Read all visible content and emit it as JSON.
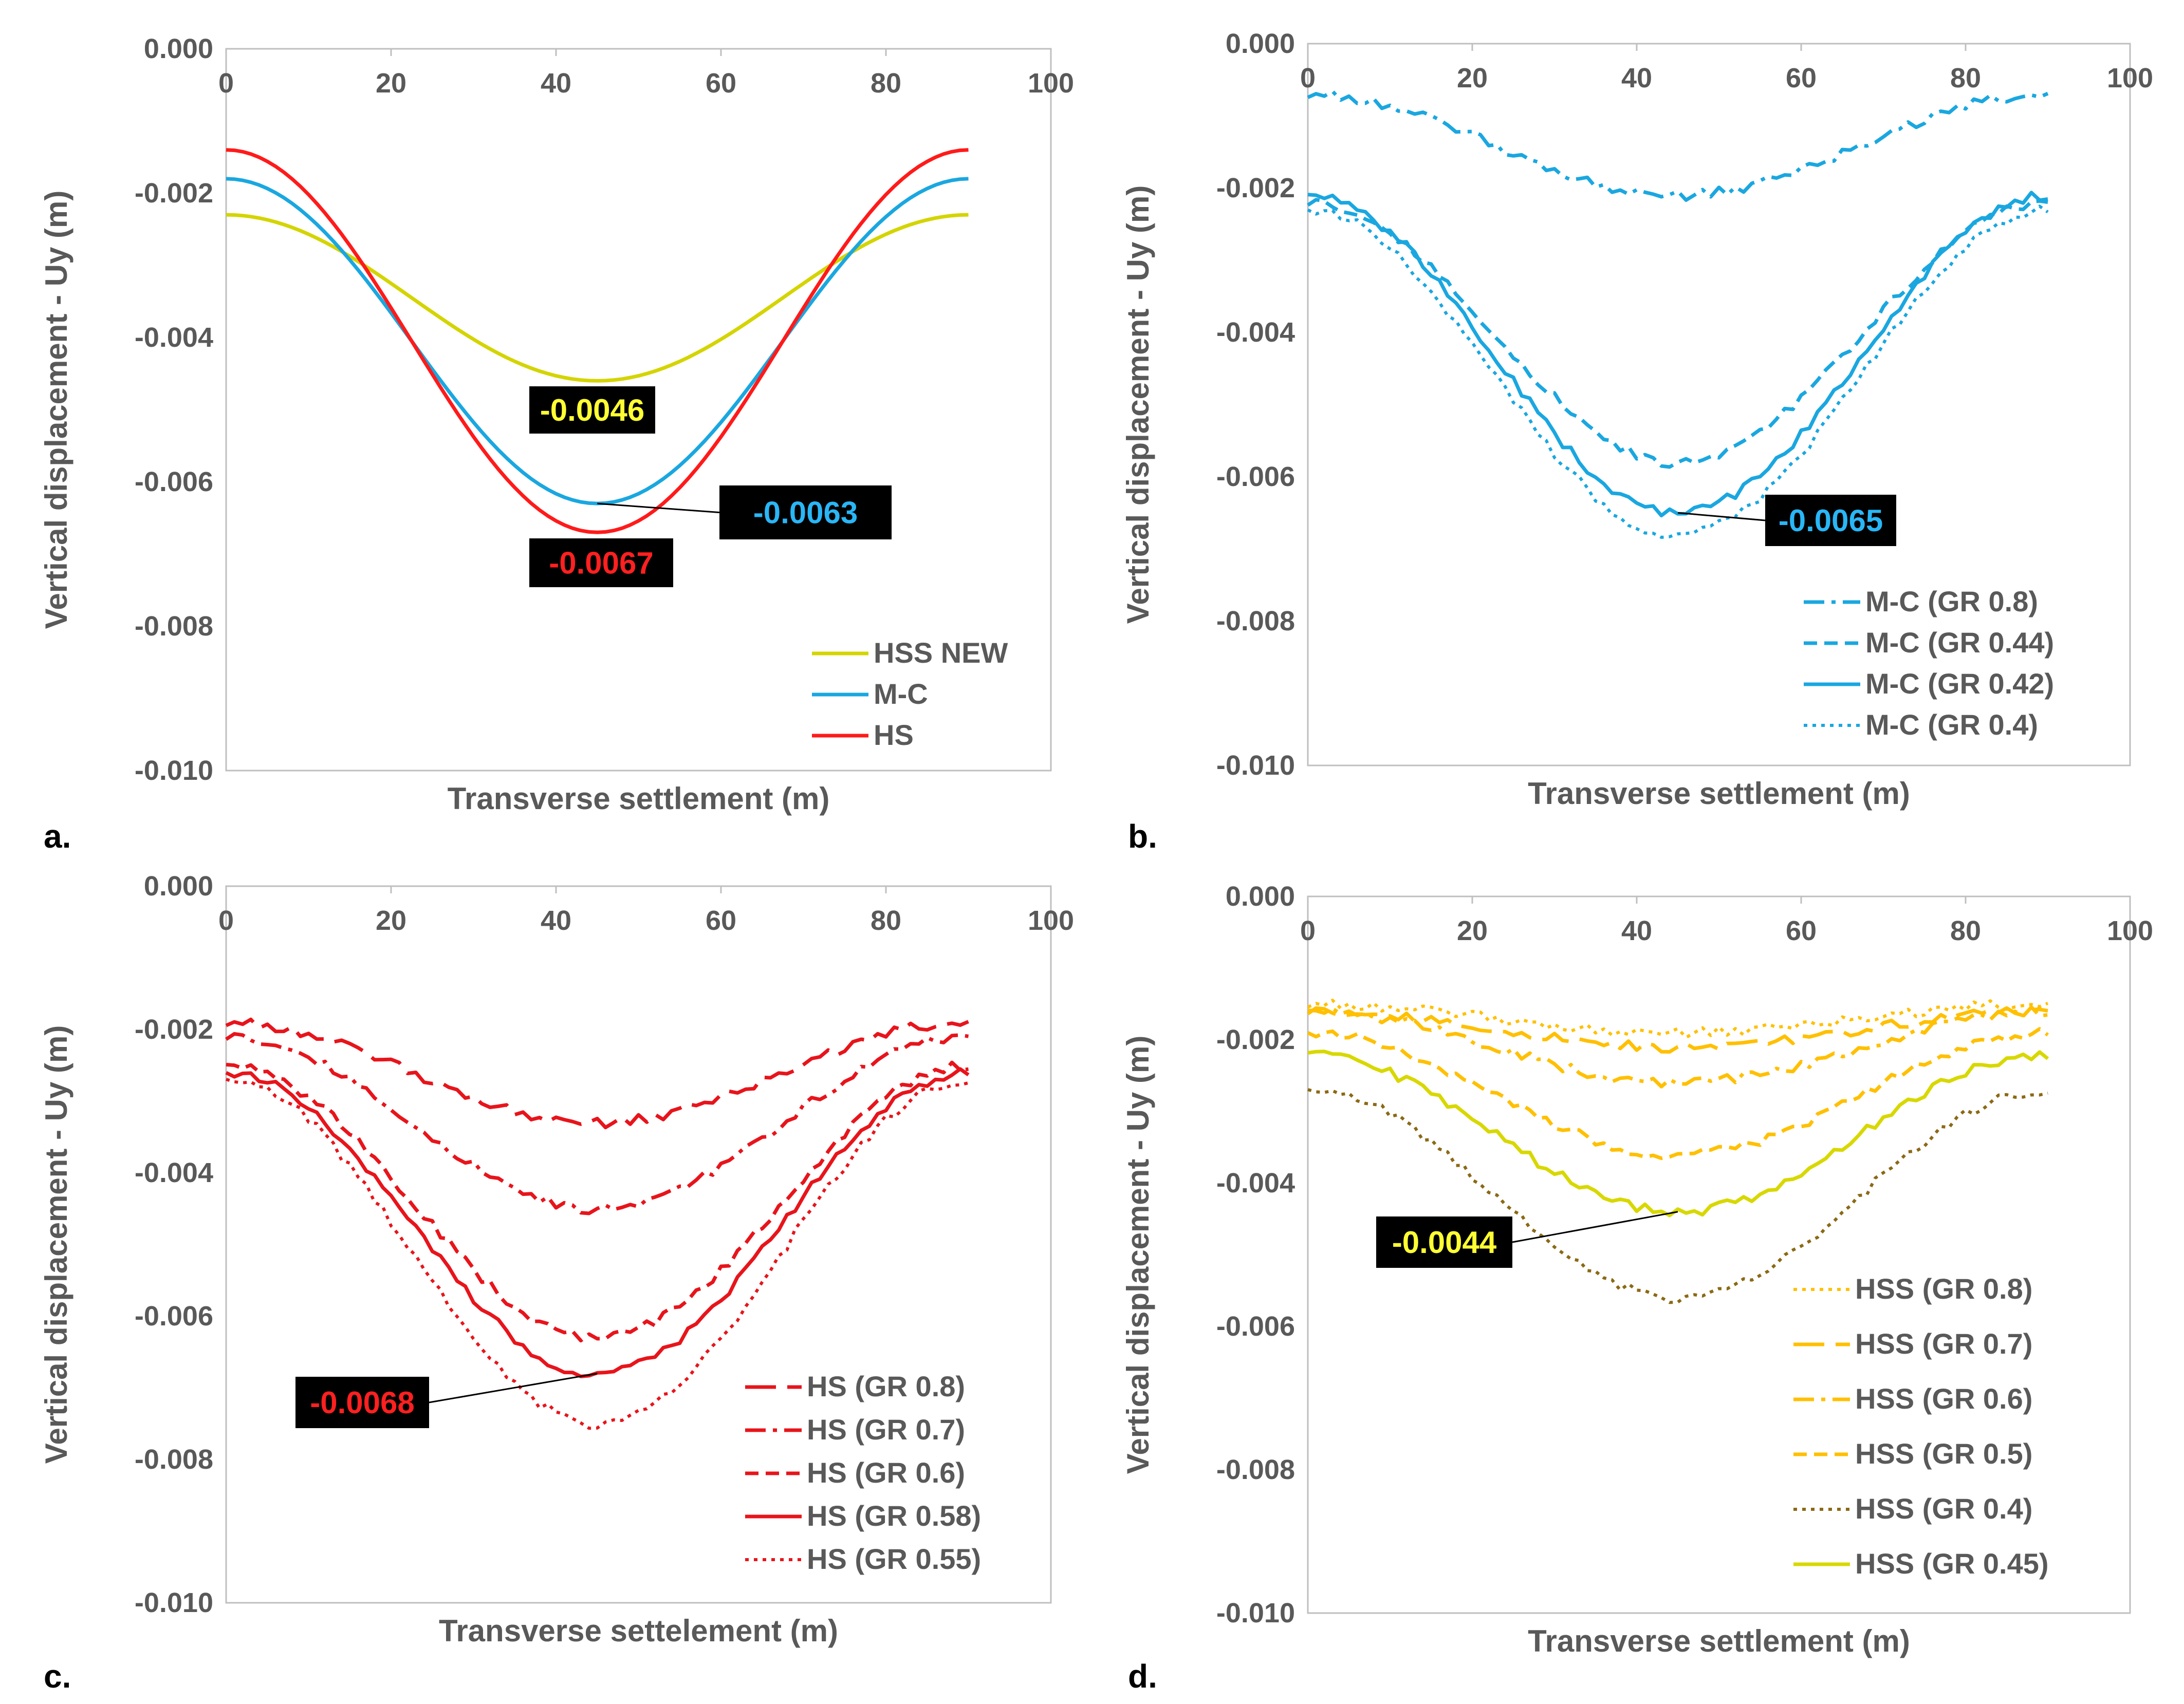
{
  "chart_data": [
    {
      "type": "line",
      "panel_label": "a.",
      "xlabel": "Transverse settlement (m)",
      "ylabel": "Vertical displacement - Uy (m)",
      "xlim": [
        0,
        100
      ],
      "ylim": [
        -0.01,
        0.0
      ],
      "x_ticks": [
        "0",
        "20",
        "40",
        "60",
        "80",
        "100"
      ],
      "y_ticks": [
        "0.000",
        "-0.002",
        "-0.004",
        "-0.006",
        "-0.008",
        "-0.010"
      ],
      "legend_position": "bottom-right",
      "series": [
        {
          "name": "HSS NEW",
          "color": "#D4D400",
          "dash": "solid",
          "base": -0.0023,
          "min": -0.0046
        },
        {
          "name": "M-C",
          "color": "#1AA7E0",
          "dash": "solid",
          "base": -0.0018,
          "min": -0.0063
        },
        {
          "name": "HS",
          "color": "#FF1A1A",
          "dash": "solid",
          "base": -0.0014,
          "min": -0.0067
        }
      ],
      "annotations": [
        {
          "text": "-0.0046",
          "color": "#FFFF33"
        },
        {
          "text": "-0.0063",
          "color": "#29B6F6"
        },
        {
          "text": "-0.0067",
          "color": "#FF2020"
        }
      ]
    },
    {
      "type": "line",
      "panel_label": "b.",
      "xlabel": "Transverse settlement (m)",
      "ylabel": "Vertical displacement - Uy (m)",
      "xlim": [
        0,
        100
      ],
      "ylim": [
        -0.01,
        0.0
      ],
      "x_ticks": [
        "0",
        "20",
        "40",
        "60",
        "80",
        "100"
      ],
      "y_ticks": [
        "0.000",
        "-0.002",
        "-0.004",
        "-0.006",
        "-0.008",
        "-0.010"
      ],
      "legend_position": "bottom-right",
      "series": [
        {
          "name": "M-C (GR 0.8)",
          "color": "#1AA7E0",
          "dash": "dashdot",
          "base": -0.0007,
          "min": -0.0021
        },
        {
          "name": "M-C (GR 0.44)",
          "color": "#1AA7E0",
          "dash": "dashed",
          "base": -0.0022,
          "min": -0.0058
        },
        {
          "name": "M-C (GR 0.42)",
          "color": "#1AA7E0",
          "dash": "solid",
          "base": -0.0021,
          "min": -0.0065
        },
        {
          "name": "M-C (GR 0.4)",
          "color": "#1AA7E0",
          "dash": "dotted",
          "base": -0.0023,
          "min": -0.0068
        }
      ],
      "annotations": [
        {
          "text": "-0.0065",
          "color": "#29B6F6"
        }
      ]
    },
    {
      "type": "line",
      "panel_label": "c.",
      "xlabel": "Transverse settelement (m)",
      "ylabel": "Vertical displacement - Uy (m)",
      "xlim": [
        0,
        100
      ],
      "ylim": [
        -0.01,
        0.0
      ],
      "x_ticks": [
        "0",
        "20",
        "40",
        "60",
        "80",
        "100"
      ],
      "y_ticks": [
        "0.000",
        "-0.002",
        "-0.004",
        "-0.006",
        "-0.008",
        "-0.010"
      ],
      "legend_position": "bottom-right",
      "series": [
        {
          "name": "HS (GR 0.8)",
          "color": "#E8141B",
          "dash": "longdash",
          "base": -0.0019,
          "min": -0.0033
        },
        {
          "name": "HS (GR 0.7)",
          "color": "#E8141B",
          "dash": "dashdot",
          "base": -0.0021,
          "min": -0.0045
        },
        {
          "name": "HS (GR 0.6)",
          "color": "#E8141B",
          "dash": "dashed",
          "base": -0.0025,
          "min": -0.0063
        },
        {
          "name": "HS (GR 0.58)",
          "color": "#E8141B",
          "dash": "solid",
          "base": -0.0026,
          "min": -0.0068
        },
        {
          "name": "HS (GR 0.55)",
          "color": "#E8141B",
          "dash": "dotted",
          "base": -0.0027,
          "min": -0.0075
        }
      ],
      "annotations": [
        {
          "text": "-0.0068",
          "color": "#FF2020"
        }
      ]
    },
    {
      "type": "line",
      "panel_label": "d.",
      "xlabel": "Transverse settlement (m)",
      "ylabel": "Vertical displacement - Uy (m)",
      "xlim": [
        0,
        100
      ],
      "ylim": [
        -0.01,
        0.0
      ],
      "x_ticks": [
        "0",
        "20",
        "40",
        "60",
        "80",
        "100"
      ],
      "y_ticks": [
        "0.000",
        "-0.002",
        "-0.004",
        "-0.006",
        "-0.008",
        "-0.010"
      ],
      "legend_position": "bottom-right",
      "series": [
        {
          "name": "HSS (GR 0.8)",
          "color": "#FFC000",
          "dash": "dotted",
          "base": -0.0015,
          "min": -0.0019
        },
        {
          "name": "HSS (GR 0.7)",
          "color": "#FFC000",
          "dash": "longdash",
          "base": -0.0016,
          "min": -0.0021
        },
        {
          "name": "HSS (GR 0.6)",
          "color": "#FFC000",
          "dash": "dashdot",
          "base": -0.0016,
          "min": -0.0026
        },
        {
          "name": "HSS (GR 0.5)",
          "color": "#FFC000",
          "dash": "dashed",
          "base": -0.0019,
          "min": -0.0036
        },
        {
          "name": "HSS (GR 0.4)",
          "color": "#8B6914",
          "dash": "dotted",
          "base": -0.0027,
          "min": -0.0056
        },
        {
          "name": "HSS (GR 0.45)",
          "color": "#D8D800",
          "dash": "solid",
          "base": -0.0022,
          "min": -0.0044
        }
      ],
      "annotations": [
        {
          "text": "-0.0044",
          "color": "#FFFF33"
        }
      ]
    }
  ]
}
